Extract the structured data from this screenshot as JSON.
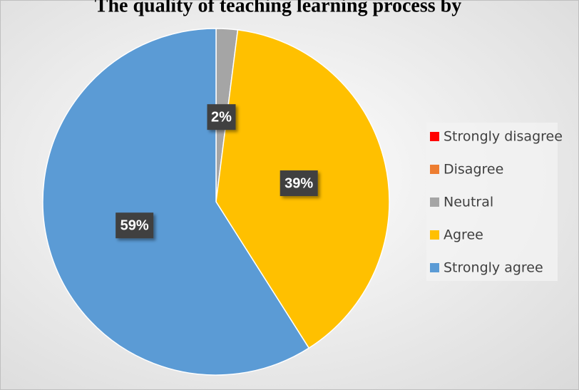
{
  "chart_data": {
    "type": "pie",
    "title": "The quality of teaching learning process by",
    "categories": [
      "Strongly disagree",
      "Disagree",
      "Neutral",
      "Agree",
      "Strongly agree"
    ],
    "values": [
      0,
      0,
      2,
      39,
      59
    ],
    "value_labels": [
      null,
      null,
      "2%",
      "39%",
      "59%"
    ],
    "colors": [
      "#ff0000",
      "#ed7d31",
      "#a5a5a5",
      "#ffc000",
      "#5b9bd5"
    ],
    "legend": "right"
  }
}
